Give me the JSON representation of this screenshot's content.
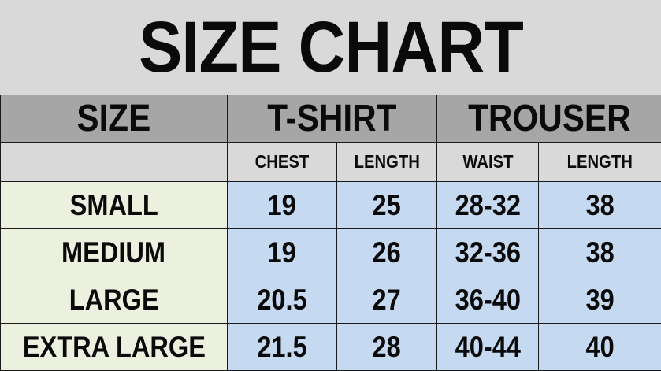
{
  "title": "SIZE CHART",
  "header": {
    "size": "SIZE",
    "groups": [
      "T-SHIRT",
      "TROUSER"
    ],
    "subheaders": [
      "CHEST",
      "LENGTH",
      "WAIST",
      "LENGTH"
    ]
  },
  "rows": [
    {
      "size": "SMALL",
      "chest": "19",
      "tshirt_length": "25",
      "waist": "28-32",
      "trouser_length": "38"
    },
    {
      "size": "MEDIUM",
      "chest": "19",
      "tshirt_length": "26",
      "waist": "32-36",
      "trouser_length": "38"
    },
    {
      "size": "LARGE",
      "chest": "20.5",
      "tshirt_length": "27",
      "waist": "36-40",
      "trouser_length": "39"
    },
    {
      "size": "EXTRA LARGE",
      "chest": "21.5",
      "tshirt_length": "28",
      "waist": "40-44",
      "trouser_length": "40"
    }
  ],
  "colors": {
    "title_bg": "#d9d9d9",
    "header_bg": "#a6a6a6",
    "size_column_bg": "#ebf1de",
    "value_cells_bg": "#c5d9f1"
  }
}
